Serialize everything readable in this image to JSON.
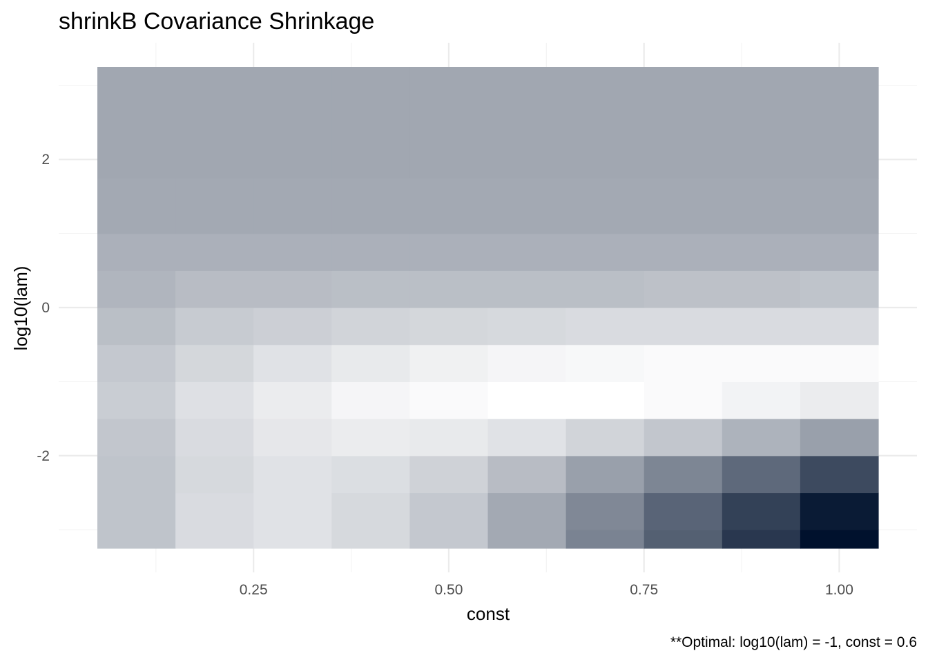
{
  "chart_data": {
    "type": "heatmap",
    "title": "shrinkB Covariance Shrinkage",
    "xlabel": "const",
    "ylabel": "log10(lam)",
    "caption": "**Optimal: log10(lam) = -1, const = 0.6",
    "xlim": [
      0.05,
      1.05
    ],
    "ylim": [
      -3.25,
      3.25
    ],
    "x_ticks": [
      0.25,
      0.5,
      0.75,
      1.0
    ],
    "x_tick_labels": [
      "0.25",
      "0.50",
      "0.75",
      "1.00"
    ],
    "y_ticks": [
      -2,
      0,
      2
    ],
    "y_tick_labels": [
      "-2",
      "0",
      "2"
    ],
    "grid": true,
    "legend": "none",
    "fill_low_color": "#ffffff",
    "fill_high_color": "#00112d",
    "x": [
      0.1,
      0.2,
      0.3,
      0.4,
      0.5,
      0.6,
      0.7,
      0.8,
      0.9,
      1.0
    ],
    "rows": [
      {
        "y_from": -3.25,
        "y_to": -3.0,
        "values": [
          0.25,
          0.15,
          0.12,
          0.16,
          0.23,
          0.36,
          0.52,
          0.67,
          0.84,
          1.0
        ]
      },
      {
        "y_from": -3.0,
        "y_to": -2.5,
        "values": [
          0.25,
          0.15,
          0.12,
          0.16,
          0.23,
          0.36,
          0.5,
          0.65,
          0.8,
          0.96
        ]
      },
      {
        "y_from": -2.5,
        "y_to": -2.0,
        "values": [
          0.25,
          0.16,
          0.12,
          0.14,
          0.19,
          0.28,
          0.4,
          0.51,
          0.63,
          0.76
        ]
      },
      {
        "y_from": -2.0,
        "y_to": -1.5,
        "values": [
          0.24,
          0.15,
          0.1,
          0.08,
          0.09,
          0.12,
          0.18,
          0.24,
          0.32,
          0.4
        ]
      },
      {
        "y_from": -1.5,
        "y_to": -1.0,
        "values": [
          0.21,
          0.13,
          0.08,
          0.04,
          0.02,
          0.0,
          0.0,
          0.02,
          0.05,
          0.08
        ]
      },
      {
        "y_from": -1.0,
        "y_to": -0.5,
        "values": [
          0.23,
          0.17,
          0.12,
          0.09,
          0.06,
          0.04,
          0.03,
          0.02,
          0.02,
          0.02
        ]
      },
      {
        "y_from": -0.5,
        "y_to": 0.0,
        "values": [
          0.27,
          0.22,
          0.2,
          0.18,
          0.17,
          0.16,
          0.15,
          0.15,
          0.15,
          0.15
        ]
      },
      {
        "y_from": 0.0,
        "y_to": 0.5,
        "values": [
          0.31,
          0.28,
          0.28,
          0.27,
          0.27,
          0.27,
          0.27,
          0.26,
          0.26,
          0.25
        ]
      },
      {
        "y_from": 0.5,
        "y_to": 1.0,
        "values": [
          0.33,
          0.33,
          0.33,
          0.33,
          0.33,
          0.33,
          0.33,
          0.33,
          0.33,
          0.33
        ]
      },
      {
        "y_from": 1.0,
        "y_to": 1.75,
        "values": [
          0.36,
          0.36,
          0.36,
          0.36,
          0.36,
          0.36,
          0.36,
          0.36,
          0.36,
          0.36
        ]
      },
      {
        "y_from": 1.75,
        "y_to": 3.25,
        "values": [
          0.37,
          0.37,
          0.37,
          0.37,
          0.37,
          0.37,
          0.37,
          0.37,
          0.37,
          0.37
        ]
      }
    ]
  }
}
